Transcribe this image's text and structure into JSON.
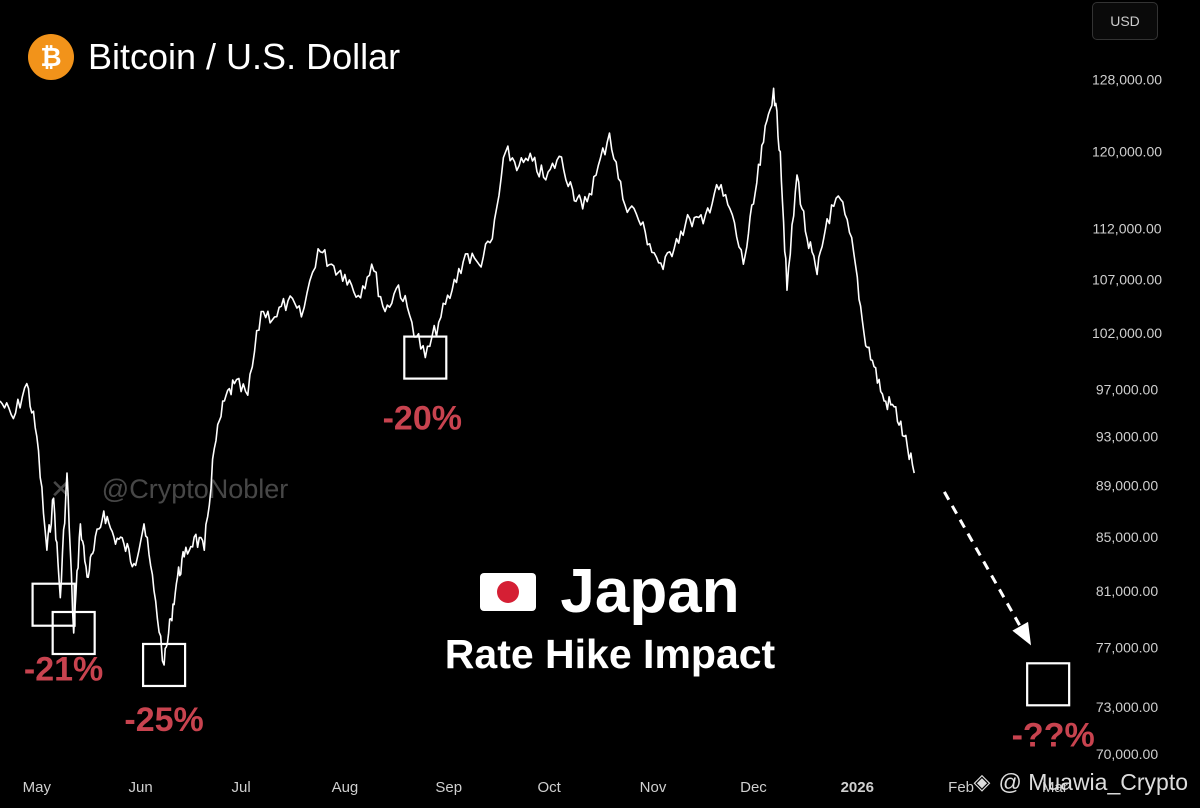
{
  "header": {
    "title": "Bitcoin / U.S. Dollar",
    "badge_symbol": "₿",
    "badge_color": "#f2931a",
    "currency": "USD"
  },
  "watermark": {
    "icon": "x-logo-icon",
    "text": "@CryptoNobler"
  },
  "headline": {
    "flag_icon": "japan-flag-icon",
    "title": "Japan",
    "subtitle": "Rate Hike Impact"
  },
  "credit": {
    "icon": "binance-icon",
    "text": "@ Muawia_Crypto"
  },
  "colors": {
    "background": "#000000",
    "price_line": "#ffffff",
    "drawdown_label": "#c8434f",
    "axis_text": "#cfcfcf"
  },
  "chart_data": {
    "type": "line",
    "title": "Bitcoin / U.S. Dollar",
    "grid": false,
    "y_scale": "log",
    "ylim": [
      69000,
      135000
    ],
    "y_ticks": [
      128000,
      120000,
      112000,
      107000,
      102000,
      97000,
      93000,
      89000,
      85000,
      81000,
      77000,
      73000,
      70000
    ],
    "y_tick_labels": [
      "128,000.00",
      "120,000.00",
      "112,000.00",
      "107,000.00",
      "102,000.00",
      "97,000.00",
      "93,000.00",
      "89,000.00",
      "85,000.00",
      "81,000.00",
      "77,000.00",
      "73,000.00",
      "70,000.00"
    ],
    "x_ticks": [
      "May",
      "Jun",
      "Jul",
      "Aug",
      "Sep",
      "Oct",
      "Nov",
      "Dec",
      "2026",
      "Feb",
      "Mar"
    ],
    "x_range": [
      "Apr 20",
      "Mar 10"
    ],
    "series": [
      {
        "x": [
          "Apr 20",
          "Apr 24",
          "Apr 28",
          "May 1",
          "May 4",
          "May 6",
          "May 8",
          "May 10",
          "May 12",
          "May 14",
          "May 16",
          "May 18",
          "May 21",
          "May 24",
          "May 27",
          "May 30",
          "Jun 2",
          "Jun 5",
          "Jun 8",
          "Jun 10",
          "Jun 12",
          "Jun 14",
          "Jun 17",
          "Jun 20",
          "Jun 23",
          "Jun 26",
          "Jun 29",
          "Jul 3",
          "Jul 7",
          "Jul 11",
          "Jul 15",
          "Jul 19",
          "Jul 24",
          "Jul 28",
          "Aug 1",
          "Aug 5",
          "Aug 9",
          "Aug 13",
          "Aug 17",
          "Aug 21",
          "Aug 25",
          "Aug 29",
          "Sep 2",
          "Sep 6",
          "Sep 10",
          "Sep 14",
          "Sep 18",
          "Sep 22",
          "Sep 26",
          "Sep 30",
          "Oct 4",
          "Oct 8",
          "Oct 11",
          "Oct 15",
          "Oct 19",
          "Oct 23",
          "Oct 27",
          "Oct 31",
          "Nov 4",
          "Nov 8",
          "Nov 12",
          "Nov 16",
          "Nov 20",
          "Nov 24",
          "Nov 28",
          "Dec 1",
          "Dec 4",
          "Dec 7",
          "Dec 9",
          "Dec 11",
          "Dec 14",
          "Dec 17",
          "Dec 20",
          "Dec 23",
          "Dec 27",
          "Dec 31",
          "Jan 3",
          "Jan 6",
          "Jan 9",
          "Jan 12",
          "Jan 15",
          "Jan 18"
        ],
        "y": [
          96000,
          94500,
          97500,
          93000,
          84000,
          88000,
          80500,
          90000,
          78000,
          86000,
          82000,
          84000,
          87000,
          85000,
          84500,
          83000,
          86000,
          81000,
          75800,
          79000,
          82000,
          83500,
          85000,
          84000,
          92000,
          96000,
          97500,
          96500,
          104000,
          103500,
          105000,
          103500,
          110000,
          108500,
          107500,
          105500,
          108500,
          104000,
          106500,
          103000,
          99800,
          103000,
          106000,
          109500,
          108500,
          111000,
          120000,
          118500,
          119000,
          117000,
          119500,
          116000,
          114000,
          117500,
          122000,
          115000,
          113500,
          110500,
          108000,
          111000,
          113000,
          112500,
          116500,
          114000,
          108500,
          114500,
          121000,
          127000,
          120000,
          106000,
          117500,
          111000,
          107500,
          113000,
          115000,
          109500,
          102000,
          99000,
          96000,
          95500,
          93000,
          90000
        ]
      }
    ],
    "annotations": [
      {
        "label": "-21%",
        "x": "May 6",
        "y": 80000
      },
      {
        "label": "-25%",
        "x": "Jun 8",
        "y": 75800
      },
      {
        "label": "-20%",
        "x": "Aug 25",
        "y": 99800
      },
      {
        "label": "-21%",
        "x": "May 12",
        "y": 78000
      },
      {
        "label": "-??%",
        "x": "Feb 27",
        "y": 74500,
        "projected": true,
        "arrow_from": {
          "x": "Jan 27",
          "y": 88500
        },
        "arrow_to": {
          "x": "Feb 21",
          "y": 77500
        }
      }
    ]
  }
}
